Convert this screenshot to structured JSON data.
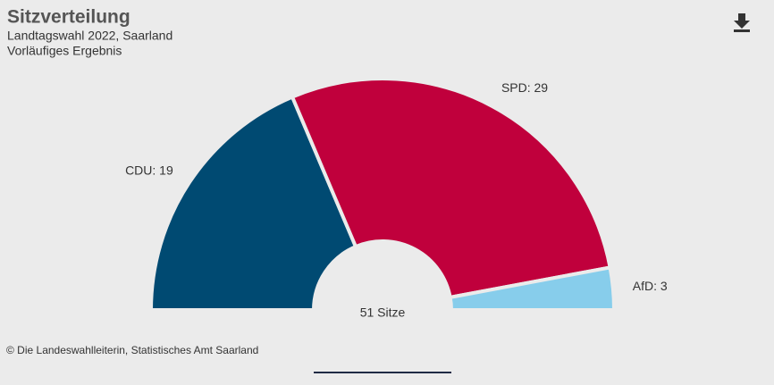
{
  "chart_data": {
    "type": "semi-donut",
    "title": "Sitzverteilung",
    "subtitle": [
      "Landtagswahl 2022, Saarland",
      "Vorläufiges Ergebnis"
    ],
    "values": [
      19,
      29,
      3
    ],
    "value_labels": [
      "CDU: 19",
      "SPD: 29",
      "AfD: 3"
    ],
    "colors": [
      "#004a72",
      "#c0003c",
      "#87cdeb"
    ],
    "center_label": "51 Sitze",
    "source": "© Die Landeswahlleiterin, Statistisches Amt Saarland"
  }
}
